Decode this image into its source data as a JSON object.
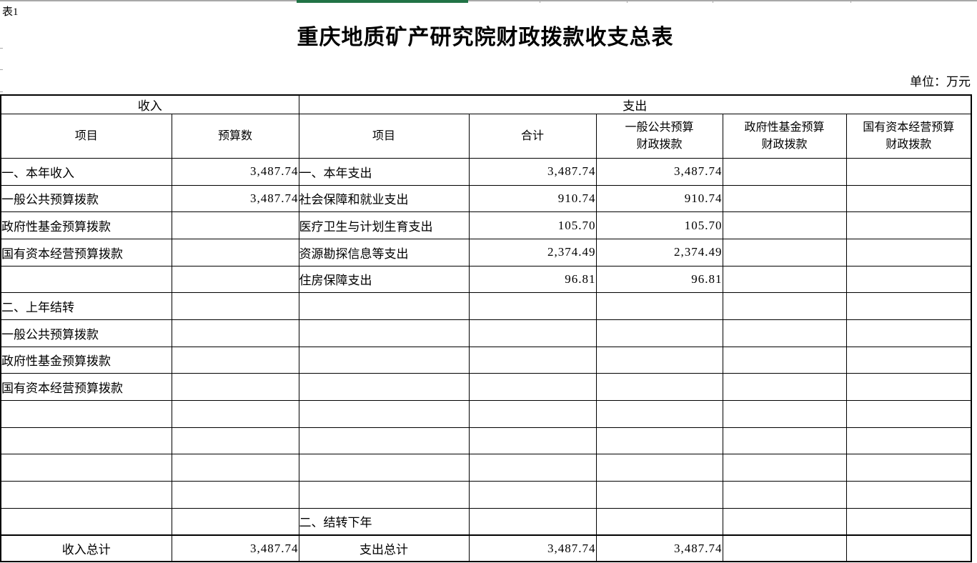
{
  "sheet_label": "表1",
  "title": "重庆地质矿产研究院财政拨款收支总表",
  "unit_note": "单位：万元",
  "chrome": {
    "excel_green": "#217346",
    "grid_gray": "#a8a8a8"
  },
  "table": {
    "section_headers": {
      "income": "收入",
      "expense": "支出"
    },
    "column_headers": {
      "income_item": "项目",
      "income_budget": "预算数",
      "expense_item": "项目",
      "expense_total": "合计",
      "expense_general": "一般公共预算\n财政拨款",
      "expense_govfund": "政府性基金预算\n财政拨款",
      "expense_state": "国有资本经营预算\n财政拨款"
    },
    "rows": [
      {
        "income_item": "一、本年收入",
        "income_budget": "3,487.74",
        "expense_item": "一、本年支出",
        "expense_total": "3,487.74",
        "expense_general": "3,487.74",
        "expense_govfund": "",
        "expense_state": ""
      },
      {
        "income_item": "一般公共预算拨款",
        "income_budget": "3,487.74",
        "expense_item": "社会保障和就业支出",
        "expense_total": "910.74",
        "expense_general": "910.74",
        "expense_govfund": "",
        "expense_state": ""
      },
      {
        "income_item": "政府性基金预算拨款",
        "income_budget": "",
        "expense_item": "医疗卫生与计划生育支出",
        "expense_total": "105.70",
        "expense_general": "105.70",
        "expense_govfund": "",
        "expense_state": ""
      },
      {
        "income_item": "国有资本经营预算拨款",
        "income_budget": "",
        "expense_item": "资源勘探信息等支出",
        "expense_total": "2,374.49",
        "expense_general": "2,374.49",
        "expense_govfund": "",
        "expense_state": ""
      },
      {
        "income_item": "",
        "income_budget": "",
        "expense_item": "住房保障支出",
        "expense_total": "96.81",
        "expense_general": "96.81",
        "expense_govfund": "",
        "expense_state": ""
      },
      {
        "income_item": "二、上年结转",
        "income_budget": "",
        "expense_item": "",
        "expense_total": "",
        "expense_general": "",
        "expense_govfund": "",
        "expense_state": ""
      },
      {
        "income_item": "一般公共预算拨款",
        "income_budget": "",
        "expense_item": "",
        "expense_total": "",
        "expense_general": "",
        "expense_govfund": "",
        "expense_state": ""
      },
      {
        "income_item": "政府性基金预算拨款",
        "income_budget": "",
        "expense_item": "",
        "expense_total": "",
        "expense_general": "",
        "expense_govfund": "",
        "expense_state": ""
      },
      {
        "income_item": "国有资本经营预算拨款",
        "income_budget": "",
        "expense_item": "",
        "expense_total": "",
        "expense_general": "",
        "expense_govfund": "",
        "expense_state": ""
      },
      {
        "income_item": "",
        "income_budget": "",
        "expense_item": "",
        "expense_total": "",
        "expense_general": "",
        "expense_govfund": "",
        "expense_state": ""
      },
      {
        "income_item": "",
        "income_budget": "",
        "expense_item": "",
        "expense_total": "",
        "expense_general": "",
        "expense_govfund": "",
        "expense_state": ""
      },
      {
        "income_item": "",
        "income_budget": "",
        "expense_item": "",
        "expense_total": "",
        "expense_general": "",
        "expense_govfund": "",
        "expense_state": ""
      },
      {
        "income_item": "",
        "income_budget": "",
        "expense_item": "",
        "expense_total": "",
        "expense_general": "",
        "expense_govfund": "",
        "expense_state": ""
      },
      {
        "income_item": "",
        "income_budget": "",
        "expense_item": "二、结转下年",
        "expense_total": "",
        "expense_general": "",
        "expense_govfund": "",
        "expense_state": ""
      },
      {
        "income_item": "收入总计",
        "income_budget": "3,487.74",
        "expense_item": "支出总计",
        "expense_total": "3,487.74",
        "expense_general": "3,487.74",
        "expense_govfund": "",
        "expense_state": "",
        "is_total": true
      }
    ]
  }
}
